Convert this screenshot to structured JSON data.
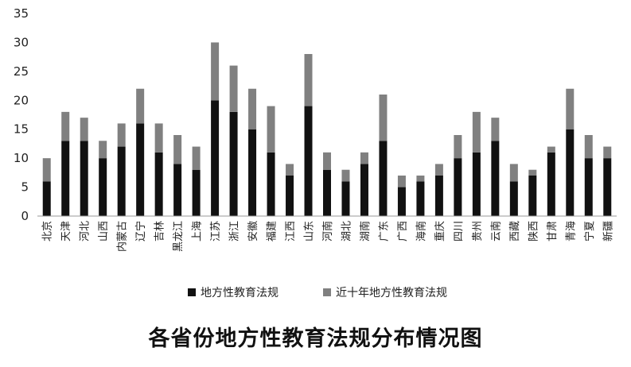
{
  "chart_data": {
    "type": "bar",
    "stacked": true,
    "title": "各省份地方性教育法规分布情况图",
    "categories": [
      "北京",
      "天津",
      "河北",
      "山西",
      "内蒙古",
      "辽宁",
      "吉林",
      "黑龙江",
      "上海",
      "江苏",
      "浙江",
      "安徽",
      "福建",
      "江西",
      "山东",
      "河南",
      "湖北",
      "湖南",
      "广东",
      "广西",
      "海南",
      "重庆",
      "四川",
      "贵州",
      "云南",
      "西藏",
      "陕西",
      "甘肃",
      "青海",
      "宁夏",
      "新疆"
    ],
    "series": [
      {
        "name": "地方性教育法规",
        "color": "#111111",
        "values": [
          6,
          13,
          13,
          10,
          12,
          16,
          11,
          9,
          8,
          20,
          18,
          15,
          11,
          7,
          19,
          8,
          6,
          9,
          13,
          5,
          6,
          7,
          10,
          11,
          13,
          6,
          7,
          11,
          15,
          10,
          10
        ]
      },
      {
        "name": "近十年地方性教育法规",
        "color": "#808080",
        "values": [
          4,
          5,
          4,
          3,
          4,
          6,
          5,
          5,
          4,
          10,
          8,
          7,
          8,
          2,
          9,
          3,
          2,
          2,
          8,
          2,
          1,
          2,
          4,
          7,
          4,
          3,
          1,
          1,
          7,
          4,
          2
        ]
      }
    ],
    "ylim": [
      0,
      35
    ],
    "yticks": [
      0,
      5,
      10,
      15,
      20,
      25,
      30,
      35
    ],
    "grid": false,
    "legend_position": "bottom"
  }
}
